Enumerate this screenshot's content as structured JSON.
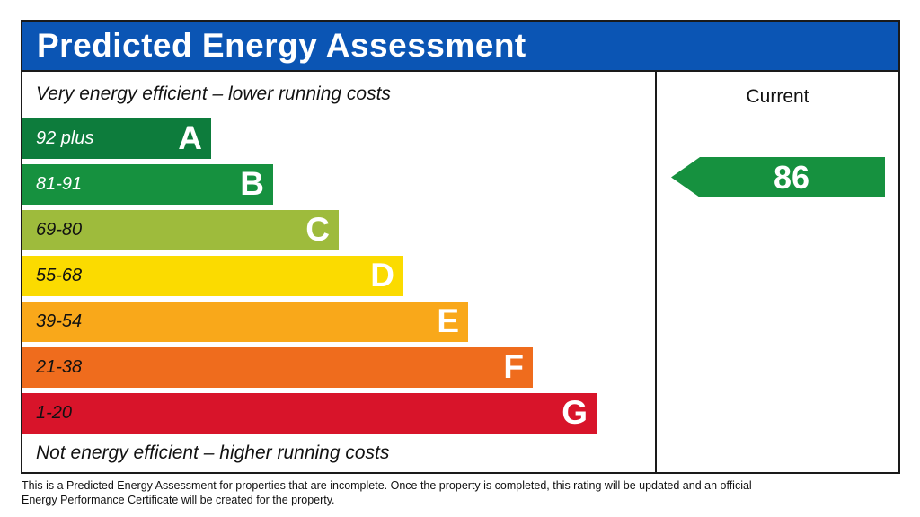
{
  "header": {
    "title": "Predicted Energy Assessment",
    "color": "#0b55b4"
  },
  "scale": {
    "top_note": "Very energy efficient – lower running costs",
    "bottom_note": "Not energy efficient – higher running costs"
  },
  "current": {
    "label": "Current",
    "value": "86",
    "band": "B",
    "color": "#16913f"
  },
  "footnote": "This is a Predicted Energy Assessment for properties that are incomplete. Once the property is completed, this rating will be updated and an official Energy Performance Certificate will be created for the property.",
  "chart_data": {
    "type": "bar",
    "title": "Predicted Energy Assessment",
    "categories": [
      "A",
      "B",
      "C",
      "D",
      "E",
      "F",
      "G"
    ],
    "ranges": [
      "92 plus",
      "81-91",
      "69-80",
      "55-68",
      "39-54",
      "21-38",
      "1-20"
    ],
    "colors": [
      "#0d7c3c",
      "#16913f",
      "#9ebb3c",
      "#fbdb00",
      "#f9a81a",
      "#ef6c1d",
      "#d8142a"
    ],
    "range_text_dark": [
      false,
      false,
      true,
      true,
      true,
      true,
      true
    ],
    "current_value": 86,
    "current_band": "B"
  }
}
